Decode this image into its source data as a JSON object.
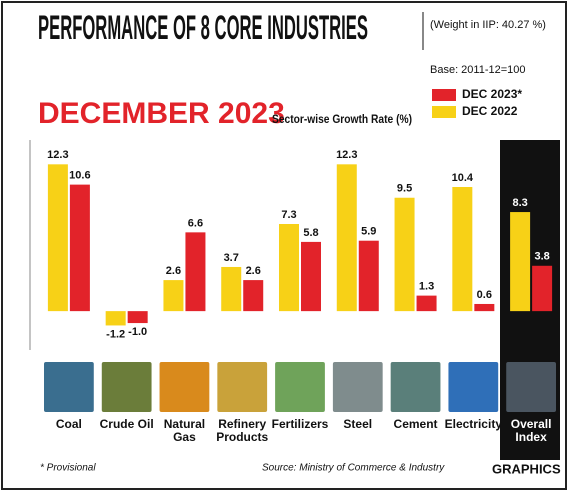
{
  "chart_data": {
    "type": "bar",
    "title": "PERFORMANCE OF 8 CORE INDUSTRIES",
    "subtitle": "DECEMBER 2023",
    "y_label": "Sector-wise Growth Rate (%)",
    "note": "(Weight in IIP: 40.27 %)",
    "base": "Base: 2011-12=100",
    "categories": [
      "Coal",
      "Crude Oil",
      "Natural Gas",
      "Refinery Products",
      "Fertilizers",
      "Steel",
      "Cement",
      "Electricity",
      "Overall Index"
    ],
    "series": [
      {
        "name": "DEC 2022",
        "color": "#f7d117",
        "values": [
          12.3,
          -1.2,
          2.6,
          3.7,
          7.3,
          12.3,
          9.5,
          10.4,
          8.3
        ],
        "value_labels": [
          "12.3",
          "-1.2",
          "2.6",
          "3.7",
          "7.3",
          "12.3",
          "9.5",
          "10.4",
          "8.3"
        ]
      },
      {
        "name": "DEC 2023*",
        "color": "#e2232a",
        "values": [
          10.6,
          -1.0,
          6.6,
          2.6,
          5.8,
          5.9,
          1.3,
          0.6,
          3.8
        ],
        "value_labels": [
          "10.6",
          "-1.0",
          "6.6",
          "2.6",
          "5.8",
          "5.9",
          "1.3",
          "0.6",
          "3.8"
        ]
      }
    ],
    "ylim": [
      -2,
      13.5
    ],
    "footnote": "* Provisional",
    "source": "Source: Ministry of Commerce & Industry",
    "credit": "GRAPHICS"
  }
}
